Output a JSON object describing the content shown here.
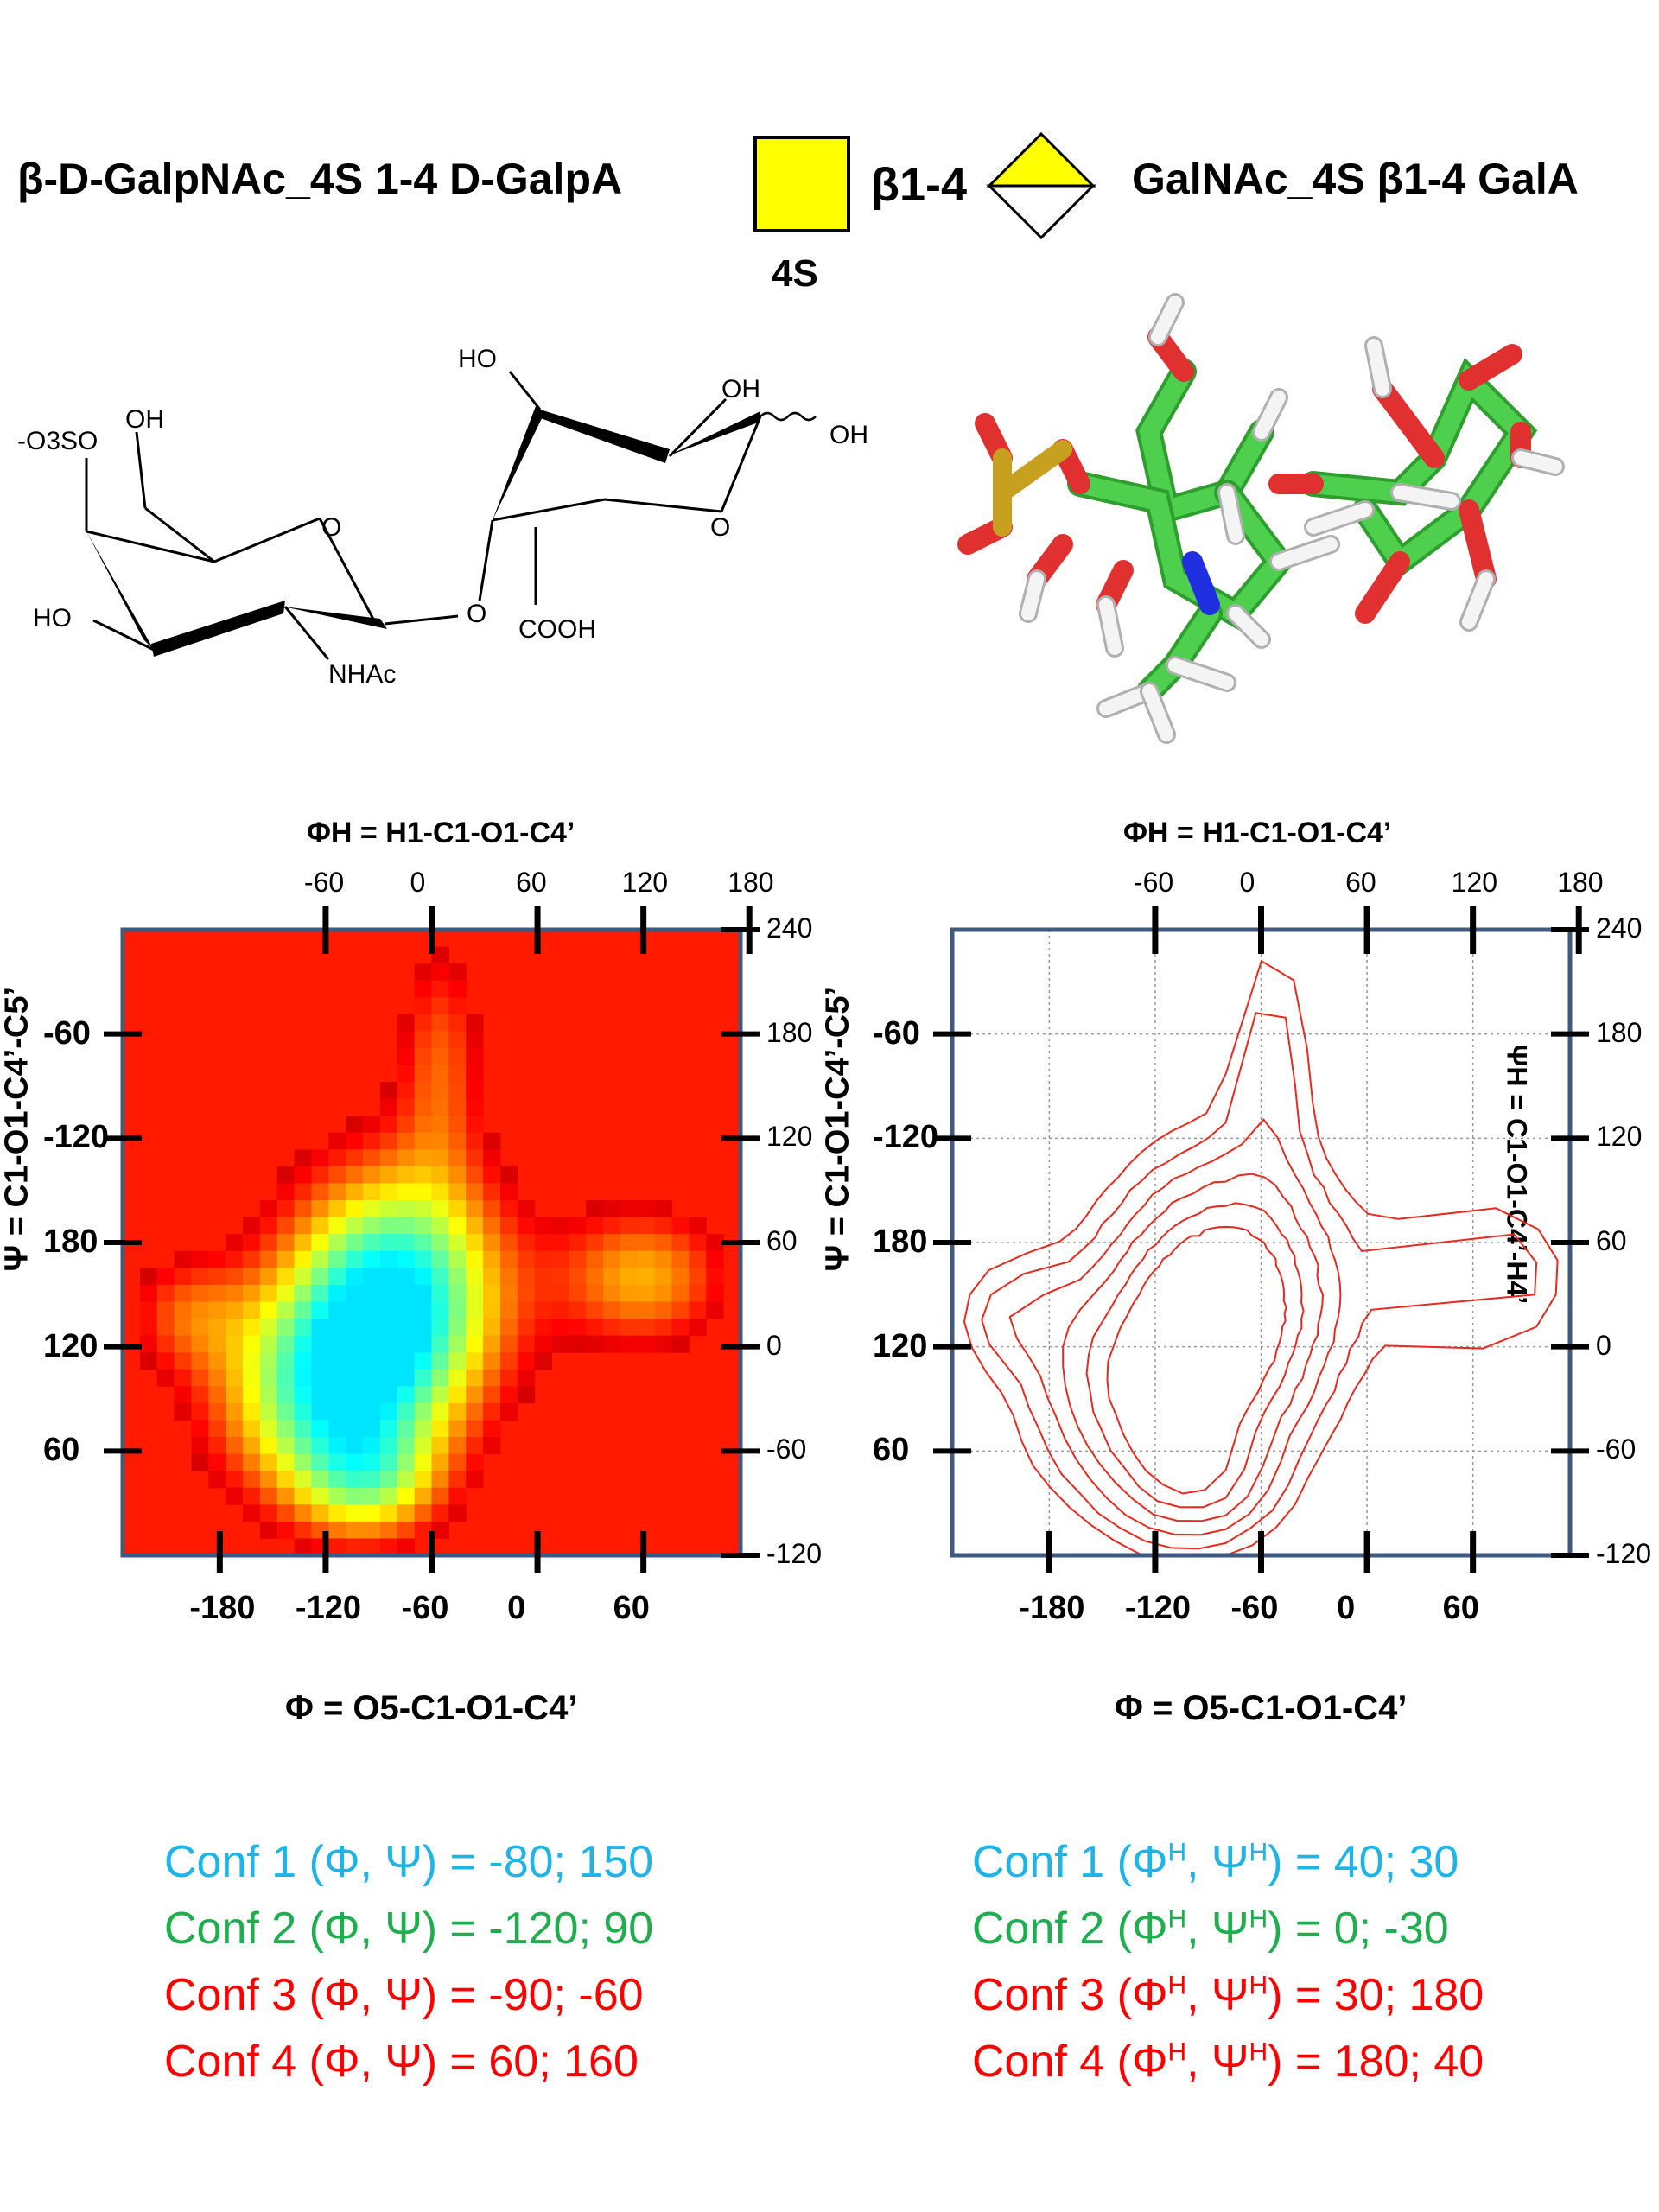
{
  "header": {
    "left_title": "β-D-GalpNAc_4S 1-4 D-GalpA",
    "linkage": "β1-4",
    "right_title": "GalNAc_4S β1-4 GalA",
    "snfg_label": "4S",
    "colors": {
      "snfg_yellow": "#FFFF00",
      "outline": "#000000"
    }
  },
  "structure_2d": {
    "labels": [
      "-O3SO",
      "OH",
      "O",
      "HO",
      "NHAc",
      "O",
      "HO",
      "OH",
      "OH",
      "O",
      "COOH"
    ]
  },
  "plots": {
    "top_axis_title": "ΦH = H1-C1-O1-C4’",
    "bottom_axis_title": "Φ = O5-C1-O1-C4’",
    "left_axis_title": "Ψ = C1-O1-C4’-C5’",
    "right_axis_title": "ΨH = C1-O1-C4’-H4’",
    "top_ticks": [
      "-60",
      "0",
      "60",
      "120",
      "180"
    ],
    "bottom_ticks": [
      "-180",
      "-120",
      "-60",
      "0",
      "60"
    ],
    "left_ticks": [
      "-60",
      "-120",
      "180",
      "120",
      "60"
    ],
    "right_ticks": [
      "240",
      "180",
      "120",
      "60",
      "0",
      "-60",
      "-120"
    ],
    "colors": {
      "heat_background": "#FF1A00",
      "contour": "#E8291F",
      "frame": "#3F5A80"
    }
  },
  "chart_data": [
    {
      "type": "heatmap",
      "xlabel": "Φ = O5-C1-O1-C4’",
      "ylabel": "Ψ = C1-O1-C4’-C5’",
      "x2label": "ΦH = H1-C1-O1-C4’",
      "y2label": "ΨH = C1-O1-C4’-H4’",
      "xticks": [
        -180,
        -120,
        -60,
        0,
        60
      ],
      "yticks_left": [
        -60,
        -120,
        180,
        120,
        60
      ],
      "xticks_top": [
        -60,
        0,
        60,
        120,
        180
      ],
      "yticks_right": [
        240,
        180,
        120,
        60,
        0,
        -60,
        -120
      ],
      "xlim": [
        -235,
        115
      ],
      "ylim_right": [
        -120,
        240
      ],
      "colormap": "jet",
      "grid": false
    },
    {
      "type": "contour",
      "xlabel": "Φ = O5-C1-O1-C4’",
      "ylabel": "Ψ = C1-O1-C4’-C5’",
      "x2label": "ΦH = H1-C1-O1-C4’",
      "y2label": "ΨH = C1-O1-C4’-H4’",
      "xticks": [
        -180,
        -120,
        -60,
        0,
        60
      ],
      "yticks_left": [
        -60,
        -120,
        180,
        120,
        60
      ],
      "xticks_top": [
        -60,
        0,
        60,
        120,
        180
      ],
      "yticks_right": [
        240,
        180,
        120,
        60,
        0,
        -60,
        -120
      ],
      "xlim": [
        -235,
        115
      ],
      "ylim_right": [
        -120,
        240
      ],
      "grid": true,
      "line_color": "#E8291F"
    }
  ],
  "conformations": {
    "left": [
      {
        "text": "Conf 1 (Φ, Ψ) = -80; 150",
        "color": "#1FB4E8"
      },
      {
        "text": "Conf 2 (Φ, Ψ) = -120; 90",
        "color": "#1EAE4E"
      },
      {
        "text": "Conf 3 (Φ, Ψ) = -90; -60",
        "color": "#FF0000"
      },
      {
        "text": "Conf 4 (Φ, Ψ) = 60;  160",
        "color": "#FF0000"
      }
    ],
    "right": [
      {
        "pre": "Conf 1 (Φ",
        "sup1": "H",
        "mid": ", Ψ",
        "sup2": "H",
        "post": ") =  40; 30",
        "color": "#1FB4E8"
      },
      {
        "pre": "Conf 2 (Φ",
        "sup1": "H",
        "mid": ", Ψ",
        "sup2": "H",
        "post": ") =   0; -30",
        "color": "#1EAE4E"
      },
      {
        "pre": "Conf 3 (Φ",
        "sup1": "H",
        "mid": ", Ψ",
        "sup2": "H",
        "post": ") =  30; 180",
        "color": "#FF0000"
      },
      {
        "pre": "Conf 4 (Φ",
        "sup1": "H",
        "mid": ", Ψ",
        "sup2": "H",
        "post": ") = 180; 40",
        "color": "#FF0000"
      }
    ]
  }
}
